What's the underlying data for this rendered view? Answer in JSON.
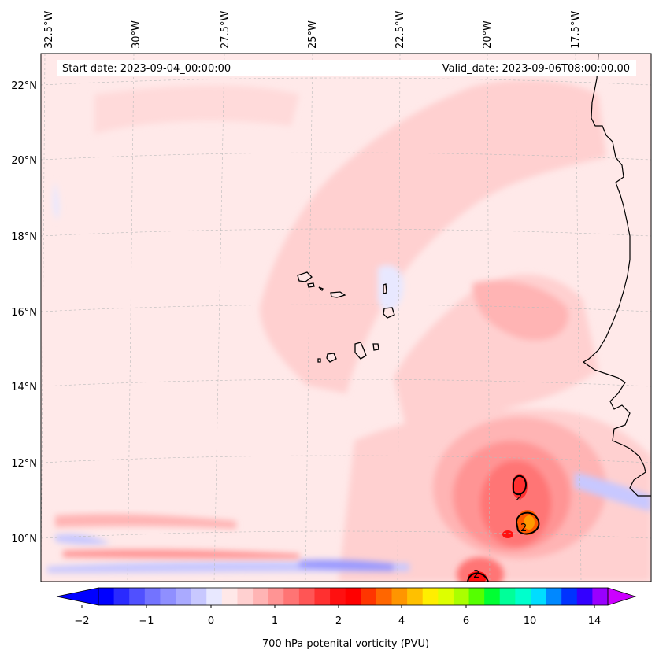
{
  "header": {
    "start_date": "Start date: 2023-09-04_00:00:00",
    "valid_date": "Valid_date: 2023-09-06T08:00:00.00"
  },
  "map": {
    "lon_labels": [
      "32.5°W",
      "30°W",
      "27.5°W",
      "25°W",
      "22.5°W",
      "20°W",
      "17.5°W"
    ],
    "lat_labels": [
      "22°N",
      "20°N",
      "18°N",
      "16°N",
      "14°N",
      "12°N",
      "10°N"
    ],
    "contour_labels": [
      "2",
      "2",
      "2"
    ]
  },
  "colorbar": {
    "label": "700 hPa potenital vorticity (PVU)",
    "ticks": [
      "−2",
      "−1",
      "0",
      "1",
      "2",
      "4",
      "6",
      "10",
      "14"
    ],
    "colors": [
      "#0000ff",
      "#2a2aff",
      "#5050ff",
      "#7373ff",
      "#8f8fff",
      "#aaaaff",
      "#c8c8ff",
      "#e8e8ff",
      "#ffe8e8",
      "#ffd0d0",
      "#ffb4b4",
      "#ff9494",
      "#ff7474",
      "#ff5555",
      "#ff3030",
      "#ff1010",
      "#ff0000",
      "#ff3500",
      "#ff6600",
      "#ff9500",
      "#ffc000",
      "#ffee00",
      "#ddff00",
      "#aaff00",
      "#55ff00",
      "#00ff33",
      "#00ff99",
      "#00ffcc",
      "#00ddff",
      "#0088ff",
      "#0033ff",
      "#3300ff",
      "#9900ff"
    ]
  }
}
